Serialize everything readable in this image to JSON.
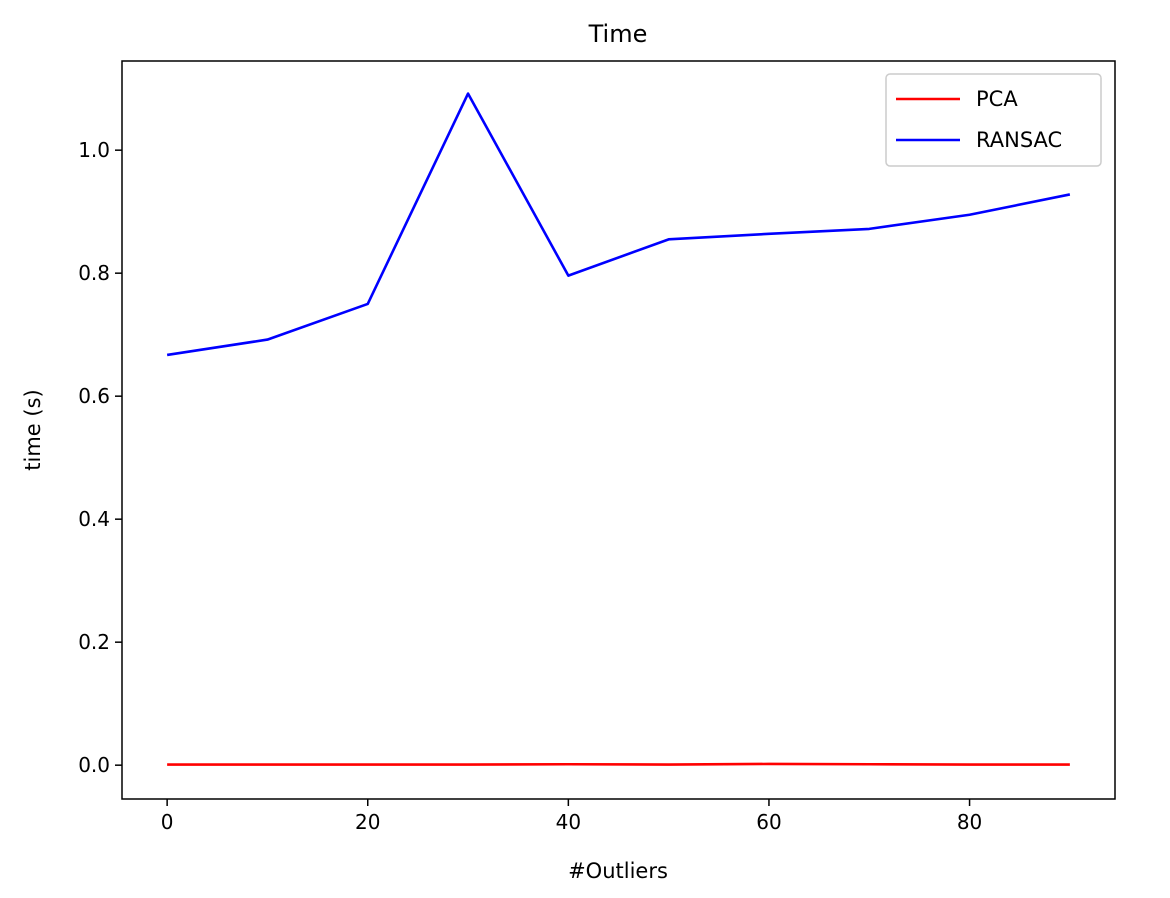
{
  "chart_data": {
    "type": "line",
    "title": "Time",
    "xlabel": "#Outliers",
    "ylabel": "time (s)",
    "x": [
      0,
      10,
      20,
      30,
      40,
      50,
      60,
      70,
      80,
      90
    ],
    "xlim": [
      -4.5,
      94.5
    ],
    "ylim": [
      -0.055,
      1.145
    ],
    "xticks": [
      0,
      20,
      40,
      60,
      80
    ],
    "yticks": [
      0.0,
      0.2,
      0.4,
      0.6,
      0.8,
      1.0
    ],
    "grid": false,
    "legend_position": "top-right",
    "series": [
      {
        "name": "PCA",
        "color": "#ff0000",
        "values": [
          0.001,
          0.001,
          0.001,
          0.001,
          0.0015,
          0.001,
          0.002,
          0.0015,
          0.001,
          0.001
        ]
      },
      {
        "name": "RANSAC",
        "color": "#0000ff",
        "values": [
          0.667,
          0.692,
          0.75,
          1.092,
          0.796,
          0.855,
          0.864,
          0.872,
          0.895,
          0.928
        ]
      }
    ]
  }
}
